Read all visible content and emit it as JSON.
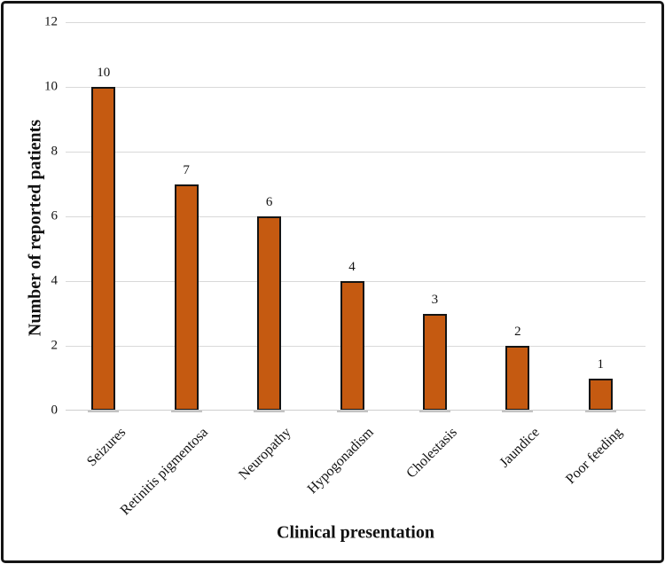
{
  "figure": {
    "background_color": "#ffffff",
    "frame_color": "#141414"
  },
  "chart_data": {
    "type": "bar",
    "title": "",
    "categories": [
      "Seizures",
      "Retinitis pigmentosa",
      "Neuropathy",
      "Hypogonadism",
      "Cholestasis",
      "Jaundice",
      "Poor feeding"
    ],
    "values": [
      10,
      7,
      6,
      4,
      3,
      2,
      1
    ],
    "data_labels": [
      "10",
      "7",
      "6",
      "4",
      "3",
      "2",
      "1"
    ],
    "xlabel": "Clinical presentation",
    "ylabel": "Number of reported patients",
    "ylim": [
      0,
      12
    ],
    "yticks": [
      0,
      2,
      4,
      6,
      8,
      10,
      12
    ],
    "grid": true,
    "legend_position": "none",
    "bar_color": "#C55A11",
    "bar_border_color": "#141414",
    "gridline_color": "#d9d9d9",
    "axis_line_color": "#cfcfcf",
    "text_color": "#111111"
  }
}
